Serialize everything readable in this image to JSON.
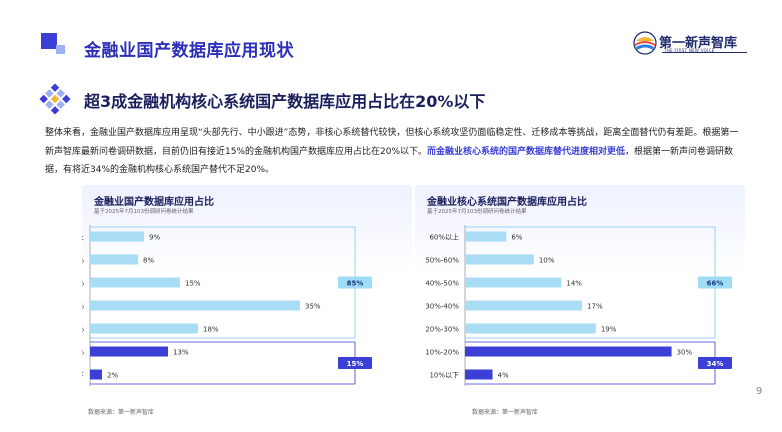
{
  "header": {
    "page_title": "金融业国产数据库应用现状",
    "logo_name": "第一新声智库",
    "logo_sub": "THE FIRST NEW VOICE"
  },
  "section": {
    "title": "超3成金融机构核心系统国产数据库应用占比在20%以下"
  },
  "paragraph": {
    "part1": "整体来看，金融业国产数据库应用呈现“头部先行、中小跟进”态势，非核心系统替代较快，但核心系统攻坚仍面临稳定性、迁移成本等挑战，距离全面替代仍有差距。根据第一新声智库最新问卷调研数据，目前仍旧有接近15%的金融机构国产数据库应用占比在20%以下。",
    "highlight": "而金融业核心系统的国产数据库替代进度相对更低",
    "part2": "，根据第一新声问卷调研数据，有将近34%的金融机构核心系统国产替代不足20%。"
  },
  "chart_data": [
    {
      "type": "bar",
      "orientation": "horizontal",
      "title": "金融业国产数据库应用占比",
      "subtitle": "基于2025年7月103份调研问卷统计结果",
      "categories": [
        "60%以上",
        "50%-60%",
        "40%-50%",
        "30%-40%",
        "20%-30%",
        "10%-20%",
        "10%以下"
      ],
      "values": [
        9,
        8,
        15,
        35,
        18,
        13,
        2
      ],
      "value_labels": [
        "9%",
        "8%",
        "15%",
        "35%",
        "18%",
        "13%",
        "2%"
      ],
      "xlim": [
        0,
        40
      ],
      "xticks": [
        "0%",
        "5%",
        "10%",
        "15%",
        "20%",
        "25%",
        "30%",
        "35%",
        "40%"
      ],
      "xtick_values": [
        0,
        5,
        10,
        15,
        20,
        25,
        30,
        35,
        40
      ],
      "groups": [
        {
          "label": "85%",
          "from_index": 0,
          "to_index": 4,
          "color": "#9fdcf5"
        },
        {
          "label": "15%",
          "from_index": 5,
          "to_index": 6,
          "color": "#3b3fd6"
        }
      ],
      "bar_colors": [
        "#a9dcf5",
        "#a9dcf5",
        "#a9dcf5",
        "#a9dcf5",
        "#a9dcf5",
        "#3b3fd6",
        "#3b3fd6"
      ],
      "source": "数据来源：第一新声智库"
    },
    {
      "type": "bar",
      "orientation": "horizontal",
      "title": "金融业核心系统国产数据库应用占比",
      "subtitle": "基于2025年7月103份调研问卷统计结果",
      "categories": [
        "60%以上",
        "50%-60%",
        "40%-50%",
        "30%-40%",
        "20%-30%",
        "10%-20%",
        "10%以下"
      ],
      "values": [
        6,
        10,
        14,
        17,
        19,
        30,
        4
      ],
      "value_labels": [
        "6%",
        "10%",
        "14%",
        "17%",
        "19%",
        "30%",
        "4%"
      ],
      "xlim": [
        0,
        35
      ],
      "xticks": [
        "0%",
        "5%",
        "10%",
        "15%",
        "20%",
        "25%",
        "30%",
        "35%"
      ],
      "xtick_values": [
        0,
        5,
        10,
        15,
        20,
        25,
        30,
        35
      ],
      "groups": [
        {
          "label": "66%",
          "from_index": 0,
          "to_index": 4,
          "color": "#9fdcf5"
        },
        {
          "label": "34%",
          "from_index": 5,
          "to_index": 6,
          "color": "#3b3fd6"
        }
      ],
      "bar_colors": [
        "#a9dcf5",
        "#a9dcf5",
        "#a9dcf5",
        "#a9dcf5",
        "#a9dcf5",
        "#3b3fd6",
        "#3b3fd6"
      ],
      "source": "数据来源：第一新声智库"
    }
  ],
  "page_number": "9",
  "colors": {
    "accent": "#3b3fd6",
    "light_bar": "#a9dcf5",
    "title": "#2c2fb8"
  }
}
